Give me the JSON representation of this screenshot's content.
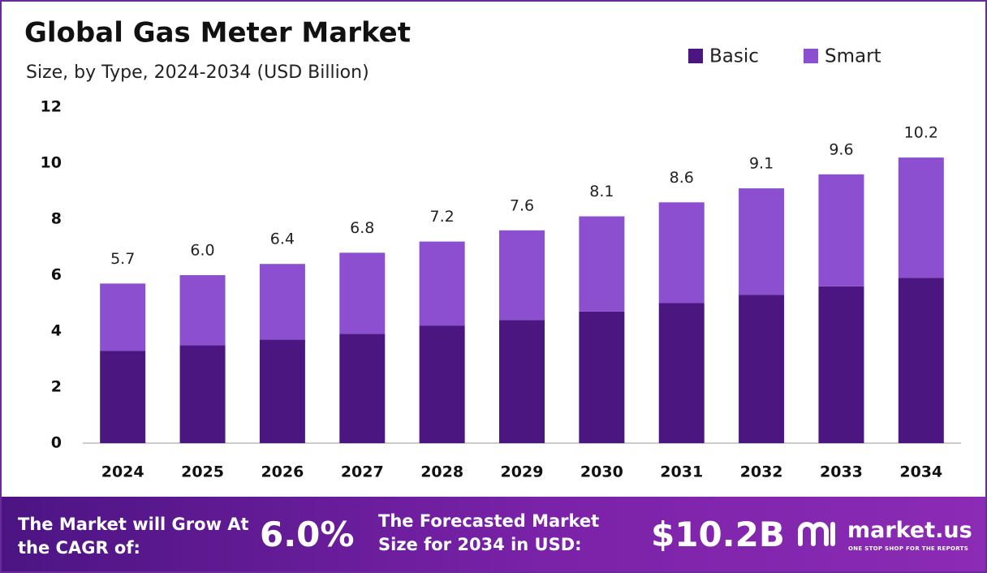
{
  "chart_data": {
    "type": "stacked-bar",
    "title": "Global Gas Meter Market",
    "subtitle": "Size, by Type, 2024-2034 (USD Billion)",
    "categories": [
      "2024",
      "2025",
      "2026",
      "2027",
      "2028",
      "2029",
      "2030",
      "2031",
      "2032",
      "2033",
      "2034"
    ],
    "series": [
      {
        "name": "Basic",
        "color": "#4b1680",
        "values": [
          3.3,
          3.5,
          3.7,
          3.9,
          4.2,
          4.4,
          4.7,
          5.0,
          5.3,
          5.6,
          5.9
        ]
      },
      {
        "name": "Smart",
        "color": "#8b4fd0",
        "values": [
          2.4,
          2.5,
          2.7,
          2.9,
          3.0,
          3.2,
          3.4,
          3.6,
          3.8,
          4.0,
          4.3
        ]
      }
    ],
    "total_labels": [
      "5.7",
      "6.0",
      "6.4",
      "6.8",
      "7.2",
      "7.6",
      "8.1",
      "8.6",
      "9.1",
      "9.6",
      "10.2"
    ],
    "ylim": [
      0,
      12
    ],
    "yticks": [
      0,
      2,
      4,
      6,
      8,
      10,
      12
    ],
    "grid": false,
    "legend": "top-right"
  },
  "footer": {
    "cagr_caption": "The Market will Grow At the CAGR of:",
    "cagr_value": "6.0%",
    "forecast_caption": "The Forecasted Market Size for 2034 in USD:",
    "forecast_value": "$10.2B",
    "brand": "market.us",
    "tagline": "ONE STOP SHOP FOR THE REPORTS"
  }
}
